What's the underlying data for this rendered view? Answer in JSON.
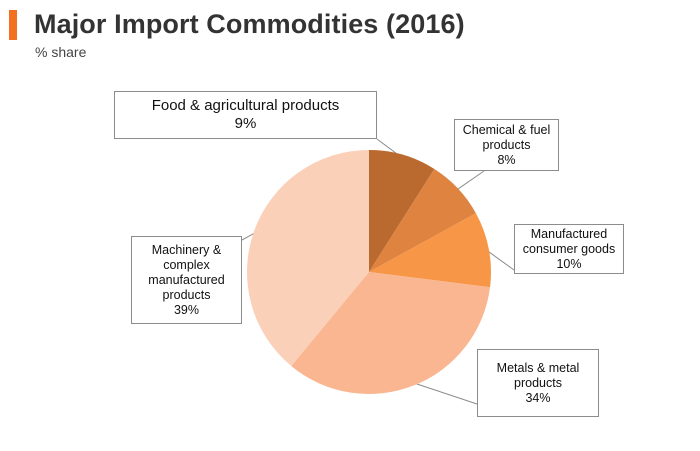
{
  "header": {
    "title": "Major Import Commodities (2016)",
    "subtitle": "% share",
    "accent_color": "#f37021"
  },
  "chart_data": {
    "type": "pie",
    "title": "Major Import Commodities (2016)",
    "subtitle": "% share",
    "start_angle_deg": 0,
    "direction": "clockwise",
    "slices": [
      {
        "key": "food",
        "label": "Food & agricultural products",
        "value": 9,
        "display": "9%",
        "color": "#bb6a2f"
      },
      {
        "key": "chem",
        "label": "Chemical & fuel\nproducts",
        "value": 8,
        "display": "8%",
        "color": "#df8340"
      },
      {
        "key": "manuf",
        "label": "Manufactured\nconsumer goods",
        "value": 10,
        "display": "10%",
        "color": "#f79646"
      },
      {
        "key": "metals",
        "label": "Metals & metal\nproducts",
        "value": 34,
        "display": "34%",
        "color": "#f9b690"
      },
      {
        "key": "mach",
        "label": "Machinery &\ncomplex\nmanufactured\nproducts",
        "value": 39,
        "display": "39%",
        "color": "#fbd0b8"
      }
    ]
  }
}
